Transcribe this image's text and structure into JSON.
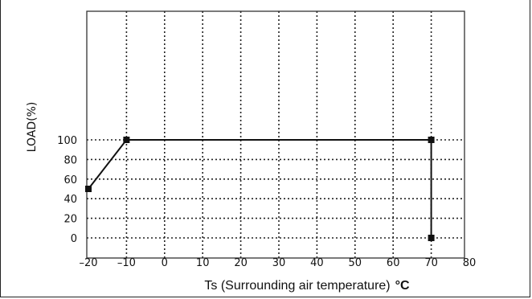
{
  "chart_data": {
    "type": "line",
    "ylabel": "LOAD(%)",
    "xlabel": "Ts (Surrounding air temperature)",
    "xlabel_unit": "°C",
    "xlim": [
      -20,
      80
    ],
    "ylim": [
      0,
      110
    ],
    "xticks": [
      -20,
      -10,
      0,
      10,
      20,
      30,
      40,
      50,
      60,
      70,
      80
    ],
    "xtick_labels": [
      "–20",
      "–10",
      "0",
      "10",
      "20",
      "30",
      "40",
      "50",
      "60",
      "70",
      "80"
    ],
    "yticks": [
      0,
      20,
      40,
      60,
      80,
      100
    ],
    "grid": true,
    "grid_style": "dotted",
    "series": [
      {
        "x": [
          -20,
          -10,
          70,
          70
        ],
        "y": [
          50,
          100,
          100,
          0
        ],
        "color": "#111111",
        "marker": "square"
      }
    ]
  }
}
